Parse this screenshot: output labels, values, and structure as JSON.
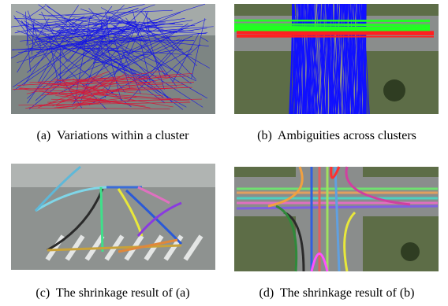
{
  "panels": [
    {
      "caption": "(a)  Variations within a cluster"
    },
    {
      "caption": "(b)  Ambiguities across clusters"
    },
    {
      "caption": "(c)  The shrinkage result of (a)"
    },
    {
      "caption": "(d)  The shrinkage result of (b)"
    }
  ]
}
